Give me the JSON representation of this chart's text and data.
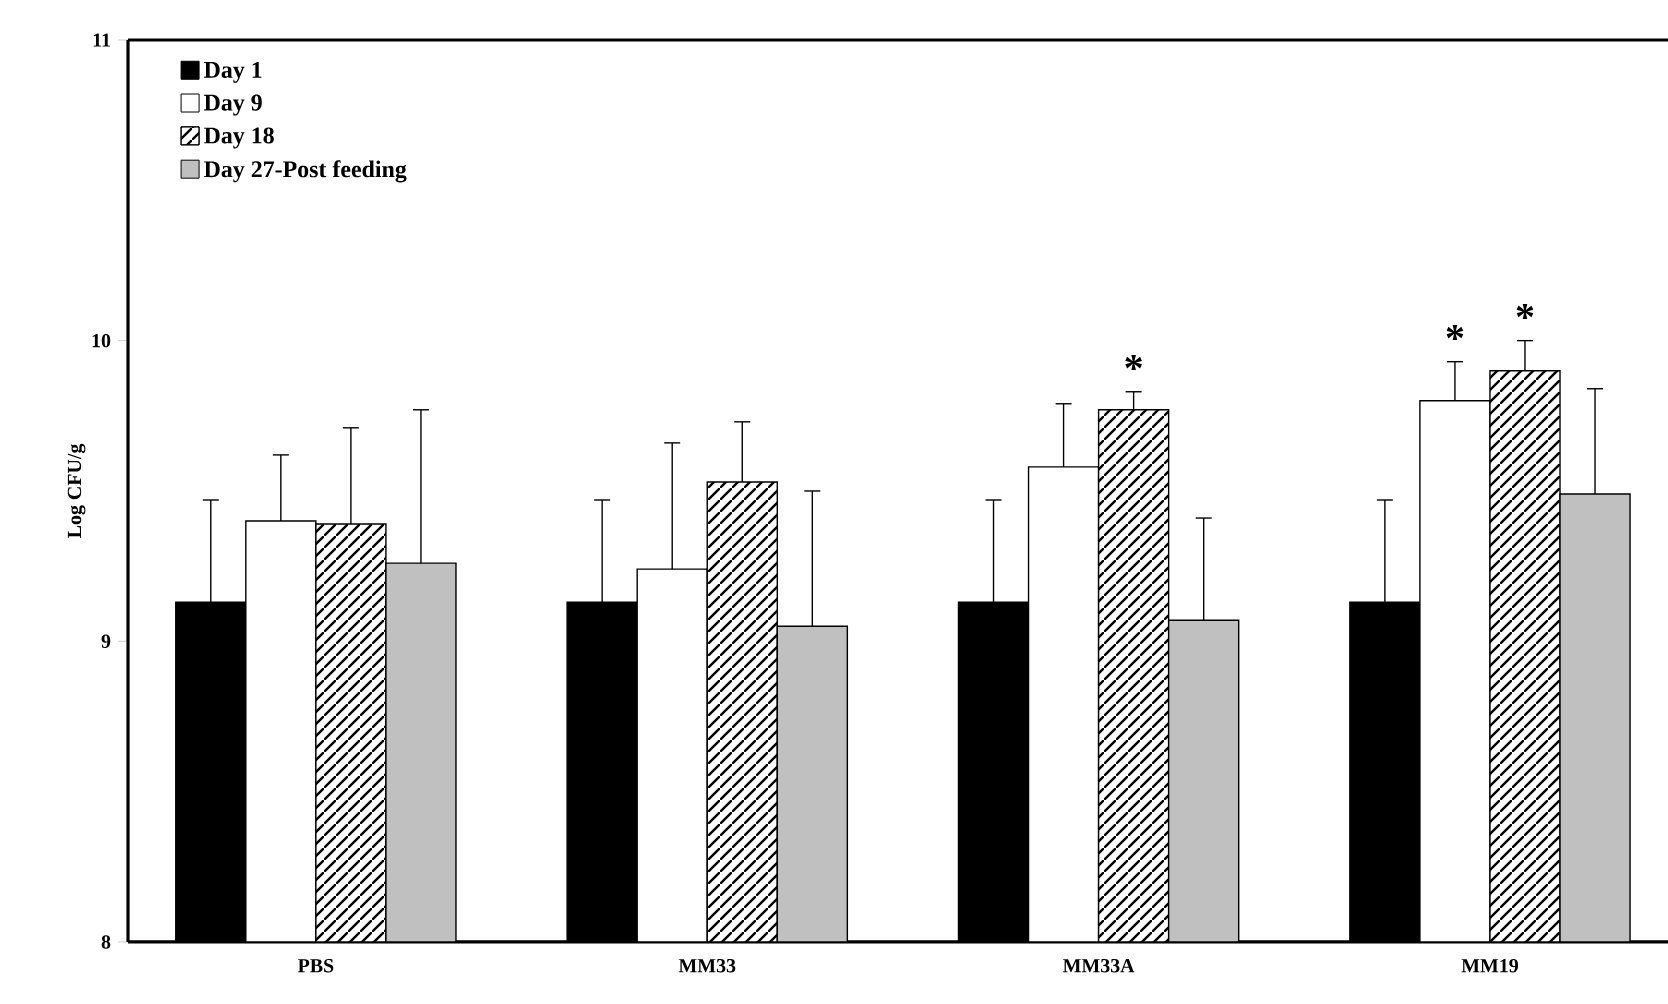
{
  "chart_data": {
    "type": "bar",
    "ylabel": "Log CFU/g",
    "categories": [
      "PBS",
      "MM33",
      "MM33A",
      "MM19"
    ],
    "series": [
      {
        "name": "Day 1",
        "color": "#000000",
        "values": [
          9.13,
          9.13,
          9.13,
          9.13
        ],
        "errors": [
          [
            9.13,
            9.47
          ],
          [
            9.13,
            9.47
          ],
          [
            9.13,
            9.47
          ],
          [
            9.13,
            9.47
          ]
        ]
      },
      {
        "name": "Day 9",
        "color": "#ffffff",
        "values": [
          9.4,
          9.24,
          9.58,
          9.8
        ],
        "errors": [
          [
            9.4,
            9.62
          ],
          [
            9.24,
            9.66
          ],
          [
            9.58,
            9.79
          ],
          [
            9.8,
            9.93
          ]
        ]
      },
      {
        "name": "Day 18",
        "color": "#ffffff",
        "values": [
          9.39,
          9.53,
          9.77,
          9.9
        ],
        "errors": [
          [
            9.39,
            9.71
          ],
          [
            9.53,
            9.73
          ],
          [
            9.77,
            9.83
          ],
          [
            9.9,
            10.0
          ]
        ]
      },
      {
        "name": "Day 27-Post feeding",
        "color": "#c0c0c0",
        "values": [
          9.26,
          9.05,
          9.07,
          9.49
        ],
        "errors": [
          [
            9.26,
            9.77
          ],
          [
            9.05,
            9.5
          ],
          [
            9.07,
            9.41
          ],
          [
            9.49,
            9.84
          ]
        ]
      }
    ],
    "ylim": [
      8,
      11
    ],
    "yticks": [
      8,
      9,
      10,
      11
    ],
    "annotations": [
      {
        "text": "*",
        "x": "MM33A",
        "y": 9.77
      },
      {
        "text": "*",
        "x": "MM19",
        "y": 9.8
      },
      {
        "text": "*",
        "x": "MM19",
        "y": 9.9
      }
    ],
    "legend": "top left"
  }
}
